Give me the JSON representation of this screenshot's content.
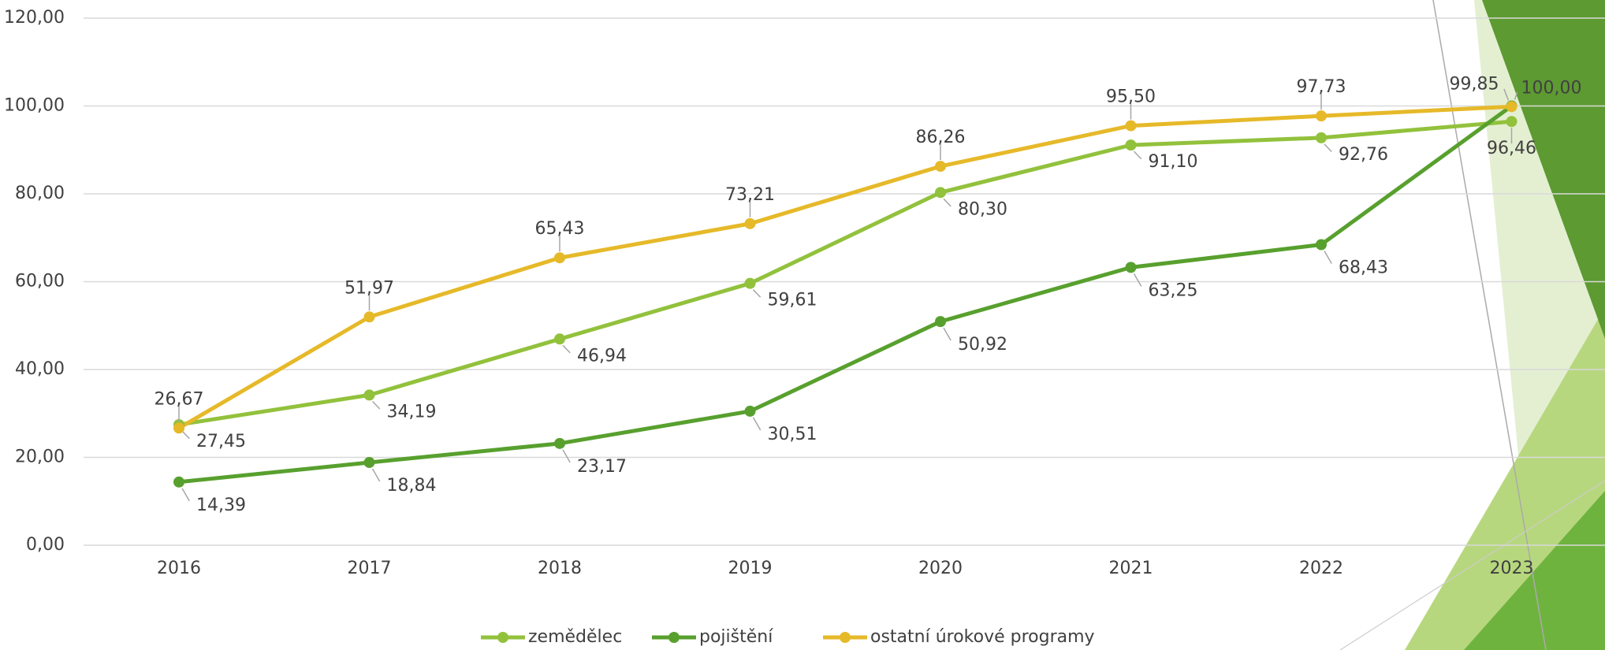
{
  "chart_data": {
    "type": "line",
    "categories": [
      "2016",
      "2017",
      "2018",
      "2019",
      "2020",
      "2021",
      "2022",
      "2023"
    ],
    "series": [
      {
        "name": "zemědělec",
        "color": "#92c13c",
        "values": [
          27.45,
          34.19,
          46.94,
          59.61,
          80.3,
          91.1,
          92.76,
          96.46
        ],
        "value_labels": [
          "27,45",
          "34,19",
          "46,94",
          "59,61",
          "80,30",
          "91,10",
          "92,76",
          "96,46"
        ]
      },
      {
        "name": "pojištění",
        "color": "#58a02e",
        "values": [
          14.39,
          18.84,
          23.17,
          30.51,
          50.92,
          63.25,
          68.43,
          100.0
        ],
        "value_labels": [
          "14,39",
          "18,84",
          "23,17",
          "30,51",
          "50,92",
          "63,25",
          "68,43",
          "100,00"
        ]
      },
      {
        "name": "ostatní úrokové programy",
        "color": "#e6b929",
        "values": [
          26.67,
          51.97,
          65.43,
          73.21,
          86.26,
          95.5,
          97.73,
          99.85
        ],
        "value_labels": [
          "26,67",
          "51,97",
          "65,43",
          "73,21",
          "86,26",
          "95,50",
          "97,73",
          "99,85"
        ]
      }
    ],
    "ylim": [
      0,
      120
    ],
    "yticks": [
      {
        "value": 0,
        "label": "0,00"
      },
      {
        "value": 20,
        "label": "20,00"
      },
      {
        "value": 40,
        "label": "40,00"
      },
      {
        "value": 60,
        "label": "60,00"
      },
      {
        "value": 80,
        "label": "80,00"
      },
      {
        "value": 100,
        "label": "100,00"
      },
      {
        "value": 120,
        "label": "120,00"
      }
    ],
    "grid": true,
    "legend": "bottom"
  }
}
